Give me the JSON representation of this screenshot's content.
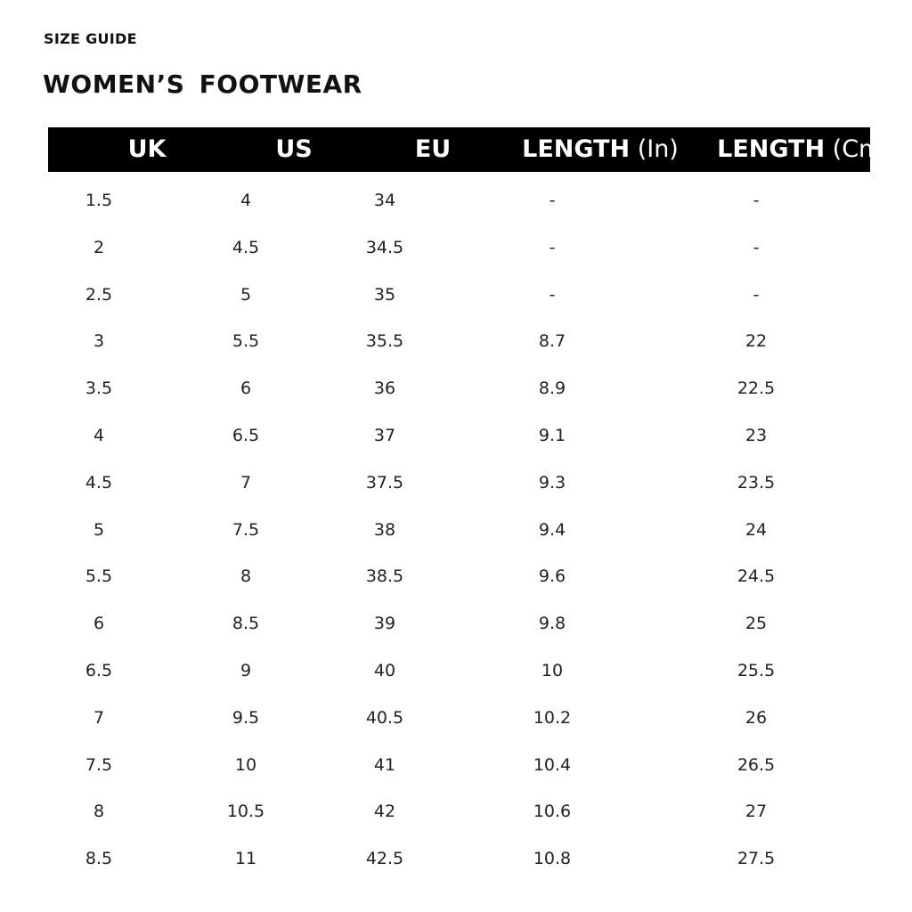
{
  "kicker": "SIZE GUIDE",
  "title": "WOMEN’S  FOOTWEAR",
  "table": {
    "headers": [
      {
        "bold": "UK",
        "normal": ""
      },
      {
        "bold": "US",
        "normal": ""
      },
      {
        "bold": "EU",
        "normal": ""
      },
      {
        "bold": "LENGTH",
        "normal": "(In)"
      },
      {
        "bold": "LENGTH",
        "normal": "(Cm)"
      }
    ],
    "rows": [
      [
        "1.5",
        "4",
        "34",
        "-",
        "-"
      ],
      [
        "2",
        "4.5",
        "34.5",
        "-",
        "-"
      ],
      [
        "2.5",
        "5",
        "35",
        "-",
        "-"
      ],
      [
        "3",
        "5.5",
        "35.5",
        "8.7",
        "22"
      ],
      [
        "3.5",
        "6",
        "36",
        "8.9",
        "22.5"
      ],
      [
        "4",
        "6.5",
        "37",
        "9.1",
        "23"
      ],
      [
        "4.5",
        "7",
        "37.5",
        "9.3",
        "23.5"
      ],
      [
        "5",
        "7.5",
        "38",
        "9.4",
        "24"
      ],
      [
        "5.5",
        "8",
        "38.5",
        "9.6",
        "24.5"
      ],
      [
        "6",
        "8.5",
        "39",
        "9.8",
        "25"
      ],
      [
        "6.5",
        "9",
        "40",
        "10",
        "25.5"
      ],
      [
        "7",
        "9.5",
        "40.5",
        "10.2",
        "26"
      ],
      [
        "7.5",
        "10",
        "41",
        "10.4",
        "26.5"
      ],
      [
        "8",
        "10.5",
        "42",
        "10.6",
        "27"
      ],
      [
        "8.5",
        "11",
        "42.5",
        "10.8",
        "27.5"
      ]
    ]
  },
  "colors": {
    "header_bg": "#000000",
    "header_text": "#ffffff",
    "text": "#222222"
  }
}
